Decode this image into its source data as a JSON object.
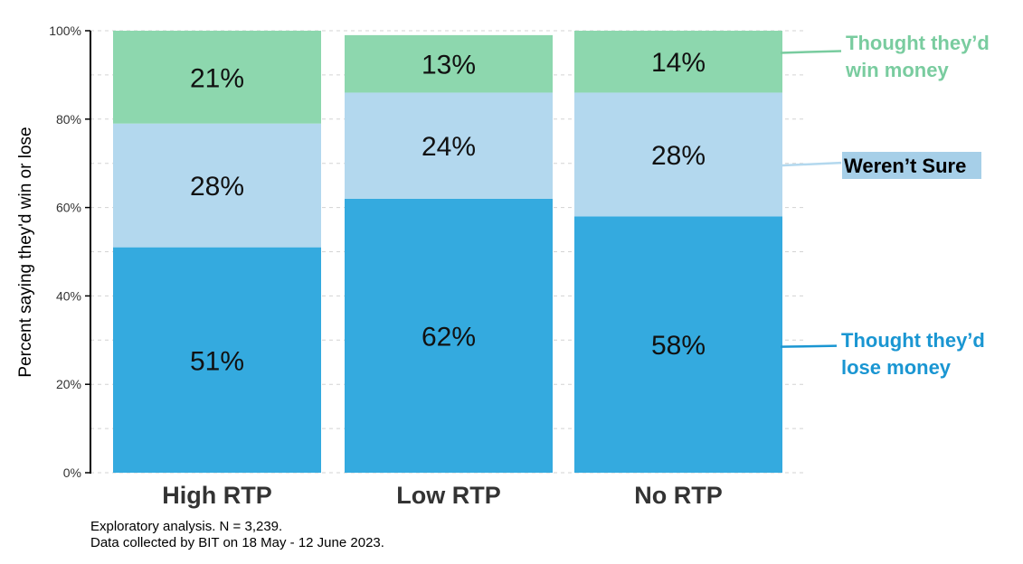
{
  "chart_data": {
    "type": "bar",
    "stacked": true,
    "orientation": "vertical",
    "ylabel": "Percent saying they'd win or lose",
    "xlabel": "",
    "ylim": [
      0,
      100
    ],
    "y_ticks": [
      "0%",
      "20%",
      "40%",
      "60%",
      "80%",
      "100%"
    ],
    "y_tick_values": [
      0,
      20,
      40,
      60,
      80,
      100
    ],
    "grid": "horizontal dashed",
    "categories": [
      "High RTP",
      "Low RTP",
      "No RTP"
    ],
    "series": [
      {
        "name": "Thought they'd lose money",
        "legend_lines": [
          "Thought they’d",
          "lose money"
        ],
        "color": "#34aadf",
        "label_color": "#1a96d2",
        "values": [
          51,
          62,
          58
        ],
        "labels": [
          "51%",
          "62%",
          "58%"
        ]
      },
      {
        "name": "Weren't Sure",
        "legend_lines": [
          "Weren’t Sure"
        ],
        "color": "#b3d8ee",
        "label_color": "#000000",
        "label_background": "#a6cfe8",
        "values": [
          28,
          24,
          28
        ],
        "labels": [
          "28%",
          "24%",
          "28%"
        ]
      },
      {
        "name": "Thought they'd win money",
        "legend_lines": [
          "Thought they’d",
          "win money"
        ],
        "color": "#8dd7ae",
        "label_color": "#79cc9f",
        "values": [
          21,
          13,
          14
        ],
        "labels": [
          "21%",
          "13%",
          "14%"
        ]
      }
    ],
    "legend": "direct labels on right"
  },
  "footnote": {
    "line1": "Exploratory analysis. N = 3,239.",
    "line2": "Data collected by BIT on 18 May - 12 June 2023."
  }
}
